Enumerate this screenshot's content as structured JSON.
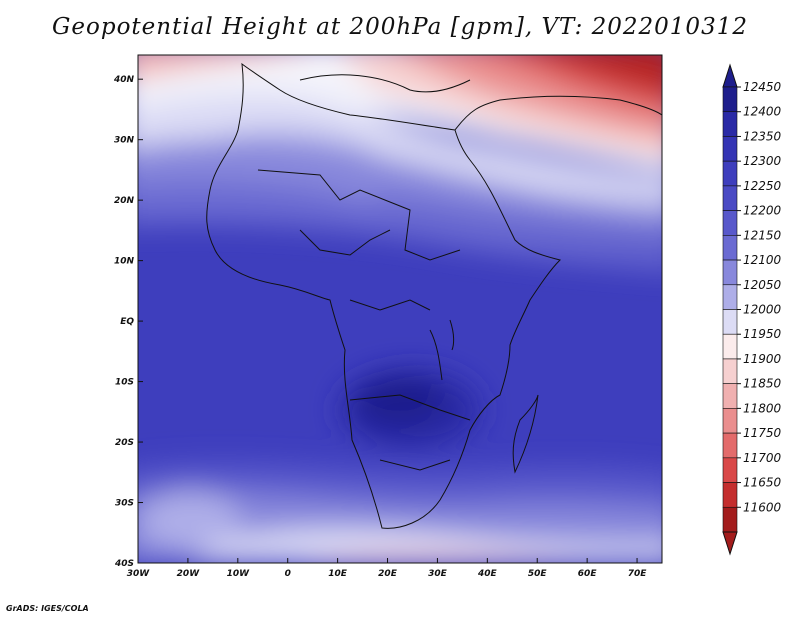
{
  "title": "Geopotential Height at 200hPa [gpm], VT: 2022010312",
  "credit": "GrADS: IGES/COLA",
  "map": {
    "lon_ticks": [
      "30W",
      "20W",
      "10W",
      "0",
      "10E",
      "20E",
      "30E",
      "40E",
      "50E",
      "60E",
      "70E"
    ],
    "lat_ticks": [
      "40N",
      "30N",
      "20N",
      "10N",
      "EQ",
      "10S",
      "20S",
      "30S",
      "40S"
    ],
    "lon_range": [
      -30,
      75
    ],
    "lat_range": [
      -40,
      44
    ]
  },
  "colorbar": {
    "labels": [
      "12450",
      "12400",
      "12350",
      "12300",
      "12250",
      "12200",
      "12150",
      "12100",
      "12050",
      "12000",
      "11950",
      "11900",
      "11850",
      "11800",
      "11750",
      "11700",
      "11650",
      "11600"
    ],
    "colors": [
      "#1e1e8c",
      "#2a2aa6",
      "#3434b4",
      "#3e3ebd",
      "#4a4ac4",
      "#5858cb",
      "#6a6ad2",
      "#8888dc",
      "#aeaee8",
      "#dcdcf5",
      "#fbecec",
      "#f6d0d0",
      "#f0b0b0",
      "#ea8e8e",
      "#e36b6b",
      "#d94848",
      "#c42e2e",
      "#a31c1c"
    ]
  }
}
